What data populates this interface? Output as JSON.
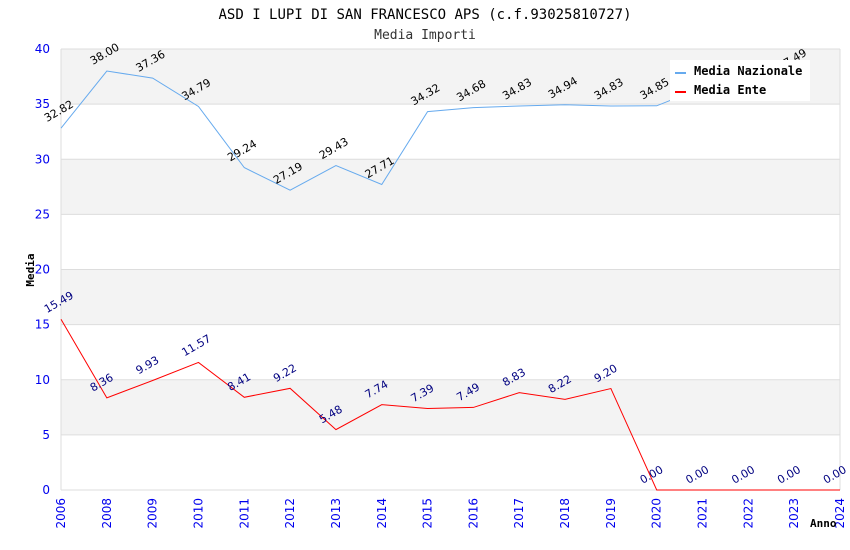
{
  "chart_data": {
    "type": "line",
    "title": "ASD I LUPI DI SAN FRANCESCO APS (c.f.93025810727)",
    "subtitle": "Media Importi",
    "xlabel": "Anno",
    "ylabel": "Media",
    "ylim": [
      0,
      40
    ],
    "yticks": [
      0,
      5,
      10,
      15,
      20,
      25,
      30,
      35,
      40
    ],
    "categories": [
      "2006",
      "2008",
      "2009",
      "2010",
      "2011",
      "2012",
      "2013",
      "2014",
      "2015",
      "2016",
      "2017",
      "2018",
      "2019",
      "2020",
      "2021",
      "2022",
      "2023",
      "2024"
    ],
    "legend_position": "top-right",
    "grid": true,
    "series": [
      {
        "name": "Media Nazionale",
        "color": "#66aaee",
        "label_color": "#000000",
        "values": [
          32.82,
          38.0,
          37.36,
          34.79,
          29.24,
          27.19,
          29.43,
          27.71,
          34.32,
          34.68,
          34.83,
          34.94,
          34.83,
          34.85,
          36.5,
          37.0,
          37.49,
          null
        ],
        "labels": [
          "32.82",
          "38.00",
          "37.36",
          "34.79",
          "29.24",
          "27.19",
          "29.43",
          "27.71",
          "34.32",
          "34.68",
          "34.83",
          "34.94",
          "34.83",
          "34.85",
          "",
          "",
          "37.49",
          ""
        ]
      },
      {
        "name": "Media Ente",
        "color": "#ff0000",
        "label_color": "#000080",
        "values": [
          15.49,
          8.36,
          9.93,
          11.57,
          8.41,
          9.22,
          5.48,
          7.74,
          7.39,
          7.49,
          8.83,
          8.22,
          9.2,
          0.0,
          0.0,
          0.0,
          0.0,
          0.0
        ],
        "labels": [
          "15.49",
          "8.36",
          "9.93",
          "11.57",
          "8.41",
          "9.22",
          "5.48",
          "7.74",
          "7.39",
          "7.49",
          "8.83",
          "8.22",
          "9.20",
          "0.00",
          "0.00",
          "0.00",
          "0.00",
          "0.00"
        ]
      }
    ]
  }
}
